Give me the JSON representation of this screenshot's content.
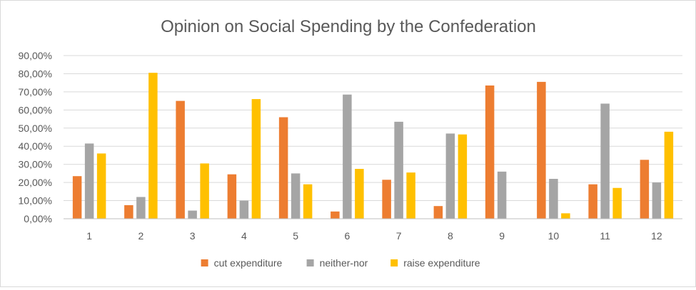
{
  "chart_data": {
    "type": "bar",
    "title": "Opinion on Social Spending by the Confederation",
    "xlabel": "",
    "ylabel": "",
    "categories": [
      "1",
      "2",
      "3",
      "4",
      "5",
      "6",
      "7",
      "8",
      "9",
      "10",
      "11",
      "12"
    ],
    "ylim": [
      0,
      90
    ],
    "yticks": [
      0,
      10,
      20,
      30,
      40,
      50,
      60,
      70,
      80,
      90
    ],
    "ytick_labels": [
      "0,00%",
      "10,00%",
      "20,00%",
      "30,00%",
      "40,00%",
      "50,00%",
      "60,00%",
      "70,00%",
      "80,00%",
      "90,00%"
    ],
    "grid": true,
    "legend_position": "bottom",
    "series": [
      {
        "name": "cut expenditure",
        "color": "#ED7D31",
        "values": [
          23.5,
          7.5,
          65.0,
          24.5,
          56.0,
          4.0,
          21.5,
          7.0,
          73.5,
          75.5,
          19.0,
          32.5
        ]
      },
      {
        "name": "neither-nor",
        "color": "#A5A5A5",
        "values": [
          41.5,
          12.0,
          4.5,
          10.0,
          25.0,
          68.5,
          53.5,
          47.0,
          26.0,
          22.0,
          63.5,
          20.0
        ]
      },
      {
        "name": "raise expenditure",
        "color": "#FFC000",
        "values": [
          36.0,
          80.5,
          30.5,
          66.0,
          19.0,
          27.5,
          25.5,
          46.5,
          0,
          3.0,
          17.0,
          48.0
        ]
      }
    ]
  }
}
